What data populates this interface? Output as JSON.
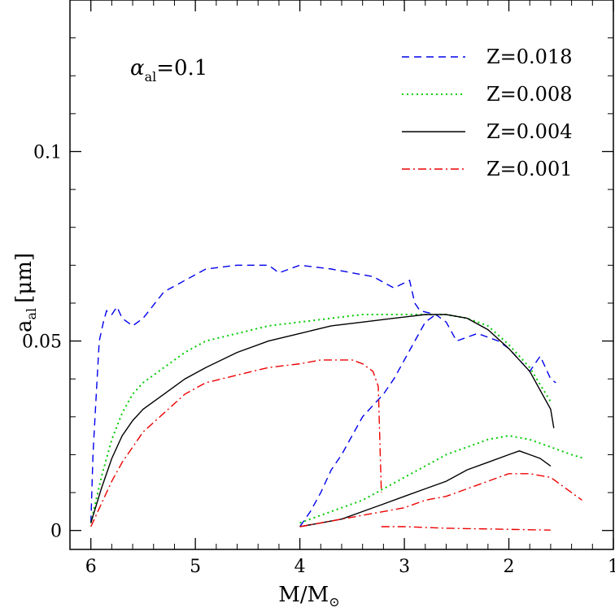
{
  "chart_data": {
    "type": "line",
    "xlabel": "M/M",
    "xlabel_symbol": "⊙",
    "ylabel": "a",
    "ylabel_sub": "al",
    "ylabel_unit": "[μm]",
    "annotation": {
      "symbol": "α",
      "sub": "al",
      "text": "=0.1"
    },
    "x_inverted": true,
    "xlim": [
      6.2,
      1.0
    ],
    "ylim": [
      -0.005,
      0.14
    ],
    "x_ticks": [
      6,
      5,
      4,
      3,
      2,
      1
    ],
    "x_tick_labels": [
      "6",
      "5",
      "4",
      "3",
      "2",
      "1"
    ],
    "y_ticks": [
      0,
      0.05,
      0.1
    ],
    "y_tick_labels": [
      "0",
      "0.05",
      "0.1"
    ],
    "grid": false,
    "legend_position": "top-right",
    "series": [
      {
        "name": "Z=0.018",
        "color": "#0000ee",
        "dash": "dashed",
        "x": [
          6.0,
          5.98,
          5.95,
          5.92,
          5.88,
          5.85,
          5.8,
          5.75,
          5.7,
          5.6,
          5.5,
          5.3,
          5.1,
          4.9,
          4.6,
          4.3,
          4.2,
          4.0,
          3.7,
          3.5,
          3.3,
          3.1,
          2.95,
          2.9,
          2.85,
          2.7,
          2.6,
          2.5,
          2.3,
          2.1,
          2.0,
          1.9,
          1.8,
          1.7,
          1.6,
          1.55
        ],
        "y": [
          0.002,
          0.02,
          0.035,
          0.05,
          0.055,
          0.058,
          0.057,
          0.059,
          0.056,
          0.054,
          0.056,
          0.063,
          0.066,
          0.069,
          0.07,
          0.07,
          0.068,
          0.07,
          0.069,
          0.068,
          0.067,
          0.064,
          0.066,
          0.06,
          0.058,
          0.057,
          0.055,
          0.05,
          0.052,
          0.05,
          0.048,
          0.045,
          0.042,
          0.046,
          0.04,
          0.039
        ],
        "x2": [
          4.0,
          3.9,
          3.8,
          3.7,
          3.6,
          3.5,
          3.4,
          3.3,
          3.2,
          3.1,
          3.0,
          2.9,
          2.8,
          2.7
        ],
        "y2": [
          0.001,
          0.005,
          0.01,
          0.016,
          0.02,
          0.025,
          0.03,
          0.033,
          0.036,
          0.04,
          0.045,
          0.05,
          0.055,
          0.057
        ]
      },
      {
        "name": "Z=0.008",
        "color": "#00cc00",
        "dash": "dotted",
        "x": [
          6.0,
          5.9,
          5.8,
          5.7,
          5.6,
          5.5,
          5.3,
          5.1,
          4.9,
          4.6,
          4.3,
          4.0,
          3.7,
          3.4,
          3.1,
          2.8,
          2.6,
          2.4,
          2.2,
          2.0,
          1.8,
          1.6
        ],
        "y": [
          0.002,
          0.014,
          0.024,
          0.031,
          0.036,
          0.039,
          0.043,
          0.047,
          0.05,
          0.052,
          0.054,
          0.055,
          0.056,
          0.057,
          0.057,
          0.057,
          0.057,
          0.056,
          0.054,
          0.049,
          0.043,
          0.034
        ],
        "x2": [
          4.0,
          3.8,
          3.6,
          3.4,
          3.2,
          3.0,
          2.8,
          2.6,
          2.4,
          2.2,
          2.0,
          1.8,
          1.6,
          1.4,
          1.28
        ],
        "y2": [
          0.002,
          0.004,
          0.006,
          0.008,
          0.011,
          0.014,
          0.017,
          0.02,
          0.022,
          0.024,
          0.025,
          0.024,
          0.022,
          0.02,
          0.019
        ]
      },
      {
        "name": "Z=0.004",
        "color": "#000000",
        "dash": "solid",
        "x": [
          6.0,
          5.9,
          5.8,
          5.7,
          5.6,
          5.5,
          5.3,
          5.1,
          4.9,
          4.6,
          4.3,
          4.0,
          3.7,
          3.4,
          3.1,
          2.8,
          2.6,
          2.4,
          2.2,
          2.0,
          1.8,
          1.6,
          1.57
        ],
        "y": [
          0.002,
          0.011,
          0.019,
          0.025,
          0.029,
          0.032,
          0.036,
          0.04,
          0.043,
          0.047,
          0.05,
          0.052,
          0.054,
          0.055,
          0.056,
          0.057,
          0.057,
          0.056,
          0.053,
          0.048,
          0.042,
          0.032,
          0.027
        ],
        "x2": [
          4.0,
          3.8,
          3.6,
          3.4,
          3.2,
          3.0,
          2.8,
          2.6,
          2.4,
          2.2,
          2.0,
          1.9,
          1.8,
          1.7,
          1.6
        ],
        "y2": [
          0.001,
          0.002,
          0.003,
          0.005,
          0.007,
          0.009,
          0.011,
          0.013,
          0.016,
          0.018,
          0.02,
          0.021,
          0.02,
          0.019,
          0.017
        ]
      },
      {
        "name": "Z=0.001",
        "color": "#ee0000",
        "dash": "dashdot",
        "x": [
          6.0,
          5.9,
          5.8,
          5.7,
          5.6,
          5.5,
          5.3,
          5.1,
          4.9,
          4.6,
          4.3,
          4.0,
          3.8,
          3.6,
          3.5,
          3.4,
          3.3,
          3.25,
          3.22
        ],
        "y": [
          0.001,
          0.007,
          0.013,
          0.018,
          0.022,
          0.026,
          0.031,
          0.036,
          0.039,
          0.041,
          0.043,
          0.044,
          0.045,
          0.045,
          0.045,
          0.044,
          0.042,
          0.038,
          0.01
        ],
        "x2": [
          4.0,
          3.8,
          3.6,
          3.4,
          3.2,
          3.0,
          2.8,
          2.6,
          2.4,
          2.2,
          2.0,
          1.8,
          1.6,
          1.5,
          1.4,
          1.3
        ],
        "y2": [
          0.001,
          0.002,
          0.003,
          0.004,
          0.005,
          0.006,
          0.008,
          0.009,
          0.011,
          0.013,
          0.015,
          0.015,
          0.014,
          0.012,
          0.01,
          0.008
        ],
        "x3": [
          3.22,
          3.1,
          3.0,
          2.8,
          2.6,
          2.4,
          2.2,
          2.0,
          1.8,
          1.6
        ],
        "y3": [
          0.001,
          0.001,
          0.001,
          0.0008,
          0.0006,
          0.0005,
          0.0004,
          0.0003,
          0.0002,
          0.0001
        ]
      }
    ]
  }
}
